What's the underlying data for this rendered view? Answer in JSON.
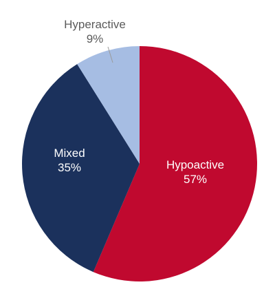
{
  "chart_data": {
    "type": "pie",
    "slices": [
      {
        "label": "Hypoactive",
        "value": 57,
        "value_label": "57%",
        "color": "#c0092f"
      },
      {
        "label": "Mixed",
        "value": 35,
        "value_label": "35%",
        "color": "#1b315c"
      },
      {
        "label": "Hyperactive",
        "value": 9,
        "value_label": "9%",
        "color": "#a6bde3"
      }
    ],
    "title": "",
    "legend": "none",
    "start_direction": "top",
    "orientation": "clockwise"
  }
}
